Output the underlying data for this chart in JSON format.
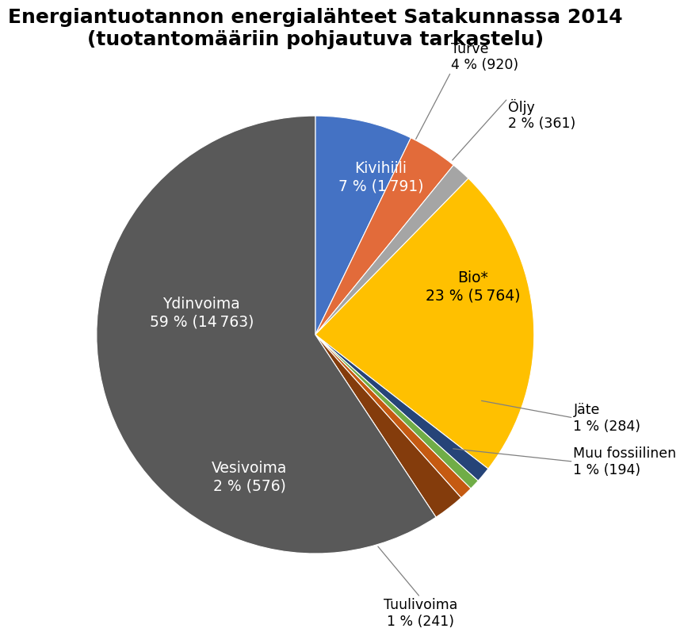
{
  "title": "Energiantuotannon energialähteet Satakunnassa 2014\n(tuotantomääriin pohjautuva tarkastelu)",
  "slices": [
    {
      "label": "Kivihiili",
      "value": 1791,
      "pct": 7,
      "color": "#4472C4"
    },
    {
      "label": "Turve",
      "value": 920,
      "pct": 4,
      "color": "#E26B3A"
    },
    {
      "label": "Öljy",
      "value": 361,
      "pct": 2,
      "color": "#A5A5A5"
    },
    {
      "label": "Bio*",
      "value": 5764,
      "pct": 23,
      "color": "#FFC000"
    },
    {
      "label": "Jäte",
      "value": 284,
      "pct": 1,
      "color": "#264478"
    },
    {
      "label": "Muu fossiilinen",
      "value": 194,
      "pct": 1,
      "color": "#70AD47"
    },
    {
      "label": "Tuulivoima",
      "value": 241,
      "pct": 1,
      "color": "#C55A11"
    },
    {
      "label": "Vesivoima",
      "value": 576,
      "pct": 2,
      "color": "#843C0C"
    },
    {
      "label": "Ydinvoima",
      "value": 14763,
      "pct": 59,
      "color": "#595959"
    }
  ],
  "background_color": "#FFFFFF",
  "title_fontsize": 18,
  "label_fontsize": 13.5,
  "label_fontsize_small": 12.5
}
